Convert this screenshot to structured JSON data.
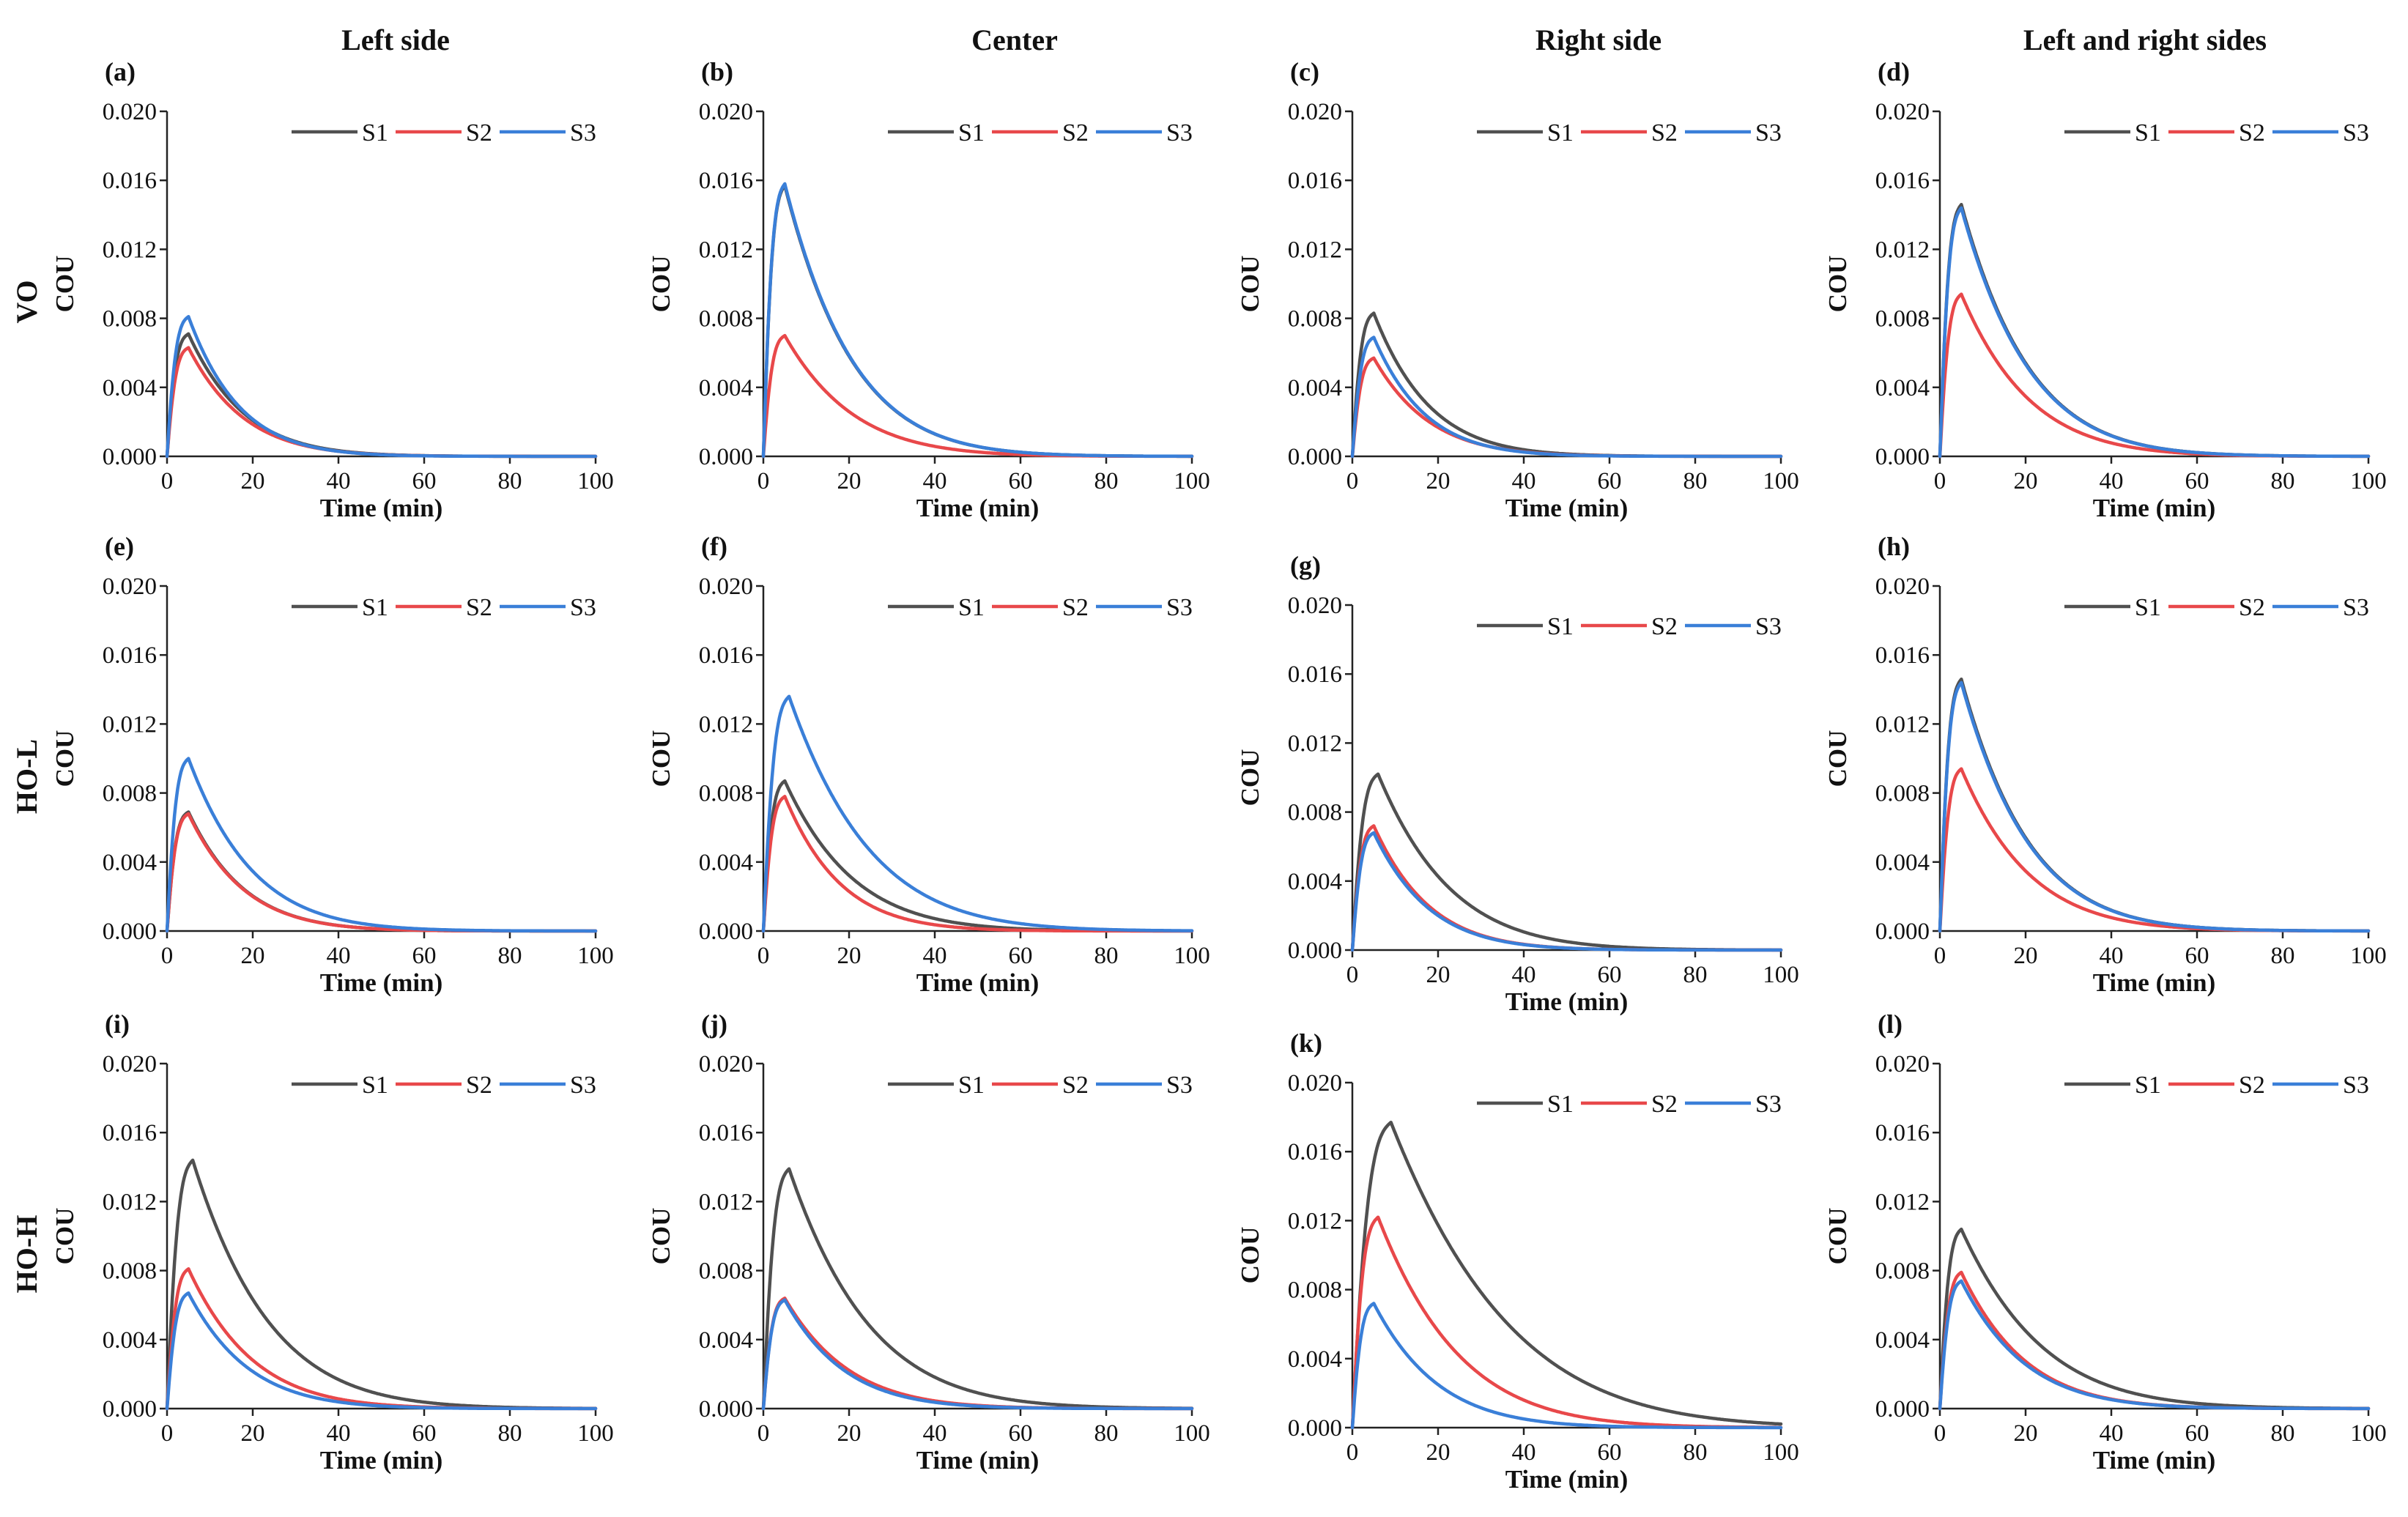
{
  "column_titles": [
    "Left side",
    "Center",
    "Right side",
    "Left and right sides"
  ],
  "row_titles": [
    "VO",
    "HO-L",
    "HO-H"
  ],
  "legend": [
    "S1",
    "S2",
    "S3"
  ],
  "colors": {
    "S1": "#505050",
    "S2": "#e8484a",
    "S3": "#3a7fd8"
  },
  "chart_data": [
    {
      "id": "a",
      "label": "(a)",
      "type": "line",
      "xlabel": "Time (min)",
      "ylabel": "COU",
      "xlim": [
        0,
        100
      ],
      "ylim": [
        0,
        0.02
      ],
      "xticks": [
        "0",
        "20",
        "40",
        "60",
        "80",
        "100"
      ],
      "yticks": [
        "0.000",
        "0.004",
        "0.008",
        "0.012",
        "0.016",
        "0.020"
      ],
      "series": [
        {
          "name": "S1",
          "peak": 0.0071,
          "peak_time": 5,
          "decay": 13
        },
        {
          "name": "S2",
          "peak": 0.0063,
          "peak_time": 5,
          "decay": 13
        },
        {
          "name": "S3",
          "peak": 0.0081,
          "peak_time": 5,
          "decay": 12
        }
      ]
    },
    {
      "id": "b",
      "label": "(b)",
      "type": "line",
      "xlabel": "Time (min)",
      "ylabel": "COU",
      "xlim": [
        0,
        100
      ],
      "ylim": [
        0,
        0.02
      ],
      "xticks": [
        "0",
        "20",
        "40",
        "60",
        "80",
        "100"
      ],
      "yticks": [
        "0.000",
        "0.004",
        "0.008",
        "0.012",
        "0.016",
        "0.020"
      ],
      "series": [
        {
          "name": "S1",
          "peak": 0.0157,
          "peak_time": 5,
          "decay": 16
        },
        {
          "name": "S2",
          "peak": 0.007,
          "peak_time": 5,
          "decay": 16
        },
        {
          "name": "S3",
          "peak": 0.0158,
          "peak_time": 5,
          "decay": 16
        }
      ]
    },
    {
      "id": "c",
      "label": "(c)",
      "type": "line",
      "xlabel": "Time (min)",
      "ylabel": "COU",
      "xlim": [
        0,
        100
      ],
      "ylim": [
        0,
        0.02
      ],
      "xticks": [
        "0",
        "20",
        "40",
        "60",
        "80",
        "100"
      ],
      "yticks": [
        "0.000",
        "0.004",
        "0.008",
        "0.012",
        "0.016",
        "0.020"
      ],
      "series": [
        {
          "name": "S1",
          "peak": 0.0083,
          "peak_time": 5,
          "decay": 13
        },
        {
          "name": "S2",
          "peak": 0.0057,
          "peak_time": 5,
          "decay": 13
        },
        {
          "name": "S3",
          "peak": 0.0069,
          "peak_time": 5,
          "decay": 12
        }
      ]
    },
    {
      "id": "d",
      "label": "(d)",
      "type": "line",
      "xlabel": "Time (min)",
      "ylabel": "COU",
      "xlim": [
        0,
        100
      ],
      "ylim": [
        0,
        0.02
      ],
      "xticks": [
        "0",
        "20",
        "40",
        "60",
        "80",
        "100"
      ],
      "yticks": [
        "0.000",
        "0.004",
        "0.008",
        "0.012",
        "0.016",
        "0.020"
      ],
      "series": [
        {
          "name": "S1",
          "peak": 0.0146,
          "peak_time": 5,
          "decay": 16
        },
        {
          "name": "S2",
          "peak": 0.0094,
          "peak_time": 5,
          "decay": 16
        },
        {
          "name": "S3",
          "peak": 0.0144,
          "peak_time": 5,
          "decay": 16
        }
      ]
    },
    {
      "id": "e",
      "label": "(e)",
      "type": "line",
      "xlabel": "Time (min)",
      "ylabel": "COU",
      "xlim": [
        0,
        100
      ],
      "ylim": [
        0,
        0.02
      ],
      "xticks": [
        "0",
        "20",
        "40",
        "60",
        "80",
        "100"
      ],
      "yticks": [
        "0.000",
        "0.004",
        "0.008",
        "0.012",
        "0.016",
        "0.020"
      ],
      "series": [
        {
          "name": "S1",
          "peak": 0.0069,
          "peak_time": 5,
          "decay": 13
        },
        {
          "name": "S2",
          "peak": 0.0068,
          "peak_time": 5,
          "decay": 13
        },
        {
          "name": "S3",
          "peak": 0.01,
          "peak_time": 5,
          "decay": 15
        }
      ]
    },
    {
      "id": "f",
      "label": "(f)",
      "type": "line",
      "xlabel": "Time (min)",
      "ylabel": "COU",
      "xlim": [
        0,
        100
      ],
      "ylim": [
        0,
        0.02
      ],
      "xticks": [
        "0",
        "20",
        "40",
        "60",
        "80",
        "100"
      ],
      "yticks": [
        "0.000",
        "0.004",
        "0.008",
        "0.012",
        "0.016",
        "0.020"
      ],
      "series": [
        {
          "name": "S1",
          "peak": 0.0087,
          "peak_time": 5,
          "decay": 16
        },
        {
          "name": "S2",
          "peak": 0.0078,
          "peak_time": 5,
          "decay": 13
        },
        {
          "name": "S3",
          "peak": 0.0136,
          "peak_time": 6,
          "decay": 19
        }
      ]
    },
    {
      "id": "g",
      "label": "(g)",
      "type": "line",
      "xlabel": "Time (min)",
      "ylabel": "COU",
      "xlim": [
        0,
        100
      ],
      "ylim": [
        0,
        0.02
      ],
      "xticks": [
        "0",
        "20",
        "40",
        "60",
        "80",
        "100"
      ],
      "yticks": [
        "0.000",
        "0.004",
        "0.008",
        "0.012",
        "0.016",
        "0.020"
      ],
      "series": [
        {
          "name": "S1",
          "peak": 0.0102,
          "peak_time": 6,
          "decay": 17
        },
        {
          "name": "S2",
          "peak": 0.0072,
          "peak_time": 5,
          "decay": 13
        },
        {
          "name": "S3",
          "peak": 0.0068,
          "peak_time": 5,
          "decay": 13
        }
      ]
    },
    {
      "id": "h",
      "label": "(h)",
      "type": "line",
      "xlabel": "Time (min)",
      "ylabel": "COU",
      "xlim": [
        0,
        100
      ],
      "ylim": [
        0,
        0.02
      ],
      "xticks": [
        "0",
        "20",
        "40",
        "60",
        "80",
        "100"
      ],
      "yticks": [
        "0.000",
        "0.004",
        "0.008",
        "0.012",
        "0.016",
        "0.020"
      ],
      "series": [
        {
          "name": "S1",
          "peak": 0.0146,
          "peak_time": 5,
          "decay": 16
        },
        {
          "name": "S2",
          "peak": 0.0094,
          "peak_time": 5,
          "decay": 16
        },
        {
          "name": "S3",
          "peak": 0.0144,
          "peak_time": 5,
          "decay": 16
        }
      ]
    },
    {
      "id": "i",
      "label": "(i)",
      "type": "line",
      "xlabel": "Time (min)",
      "ylabel": "COU",
      "xlim": [
        0,
        100
      ],
      "ylim": [
        0,
        0.02
      ],
      "xticks": [
        "0",
        "20",
        "40",
        "60",
        "80",
        "100"
      ],
      "yticks": [
        "0.000",
        "0.004",
        "0.008",
        "0.012",
        "0.016",
        "0.020"
      ],
      "series": [
        {
          "name": "S1",
          "peak": 0.0144,
          "peak_time": 6,
          "decay": 18
        },
        {
          "name": "S2",
          "peak": 0.0081,
          "peak_time": 5,
          "decay": 15
        },
        {
          "name": "S3",
          "peak": 0.0067,
          "peak_time": 5,
          "decay": 14
        }
      ]
    },
    {
      "id": "j",
      "label": "(j)",
      "type": "line",
      "xlabel": "Time (min)",
      "ylabel": "COU",
      "xlim": [
        0,
        100
      ],
      "ylim": [
        0,
        0.02
      ],
      "xticks": [
        "0",
        "20",
        "40",
        "60",
        "80",
        "100"
      ],
      "yticks": [
        "0.000",
        "0.004",
        "0.008",
        "0.012",
        "0.016",
        "0.020"
      ],
      "series": [
        {
          "name": "S1",
          "peak": 0.0139,
          "peak_time": 6,
          "decay": 19
        },
        {
          "name": "S2",
          "peak": 0.0064,
          "peak_time": 5,
          "decay": 15
        },
        {
          "name": "S3",
          "peak": 0.0063,
          "peak_time": 5,
          "decay": 14
        }
      ]
    },
    {
      "id": "k",
      "label": "(k)",
      "type": "line",
      "xlabel": "Time (min)",
      "ylabel": "COU",
      "xlim": [
        0,
        100
      ],
      "ylim": [
        0,
        0.02
      ],
      "xticks": [
        "0",
        "20",
        "40",
        "60",
        "80",
        "100"
      ],
      "yticks": [
        "0.000",
        "0.004",
        "0.008",
        "0.012",
        "0.016",
        "0.020"
      ],
      "series": [
        {
          "name": "S1",
          "peak": 0.0177,
          "peak_time": 9,
          "decay": 28
        },
        {
          "name": "S2",
          "peak": 0.0122,
          "peak_time": 6,
          "decay": 19
        },
        {
          "name": "S3",
          "peak": 0.0072,
          "peak_time": 5,
          "decay": 15
        }
      ]
    },
    {
      "id": "l",
      "label": "(l)",
      "type": "line",
      "xlabel": "Time (min)",
      "ylabel": "COU",
      "xlim": [
        0,
        100
      ],
      "ylim": [
        0,
        0.02
      ],
      "xticks": [
        "0",
        "20",
        "40",
        "60",
        "80",
        "100"
      ],
      "yticks": [
        "0.000",
        "0.004",
        "0.008",
        "0.012",
        "0.016",
        "0.020"
      ],
      "series": [
        {
          "name": "S1",
          "peak": 0.0104,
          "peak_time": 5,
          "decay": 19
        },
        {
          "name": "S2",
          "peak": 0.0079,
          "peak_time": 5,
          "decay": 15
        },
        {
          "name": "S3",
          "peak": 0.0074,
          "peak_time": 5,
          "decay": 15
        }
      ]
    }
  ]
}
